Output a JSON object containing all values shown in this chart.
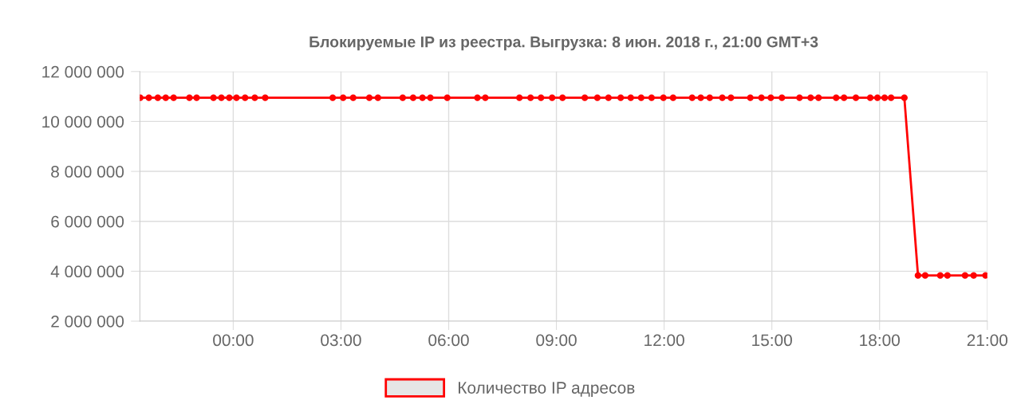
{
  "chart_data": {
    "type": "line",
    "title": "Блокируемые IP из реестра. Выгрузка: 8 июн. 2018 г., 21:00 GMT+3",
    "x": [
      -2.59,
      -2.35,
      -2.1,
      -1.88,
      -1.66,
      -1.22,
      -1.02,
      -0.55,
      -0.33,
      -0.11,
      0.09,
      0.33,
      0.6,
      0.89,
      2.77,
      3.06,
      3.34,
      3.79,
      4.03,
      4.72,
      5.01,
      5.27,
      5.49,
      5.96,
      6.8,
      7.02,
      7.97,
      8.28,
      8.57,
      8.88,
      9.17,
      9.79,
      10.14,
      10.45,
      10.79,
      11.07,
      11.36,
      11.65,
      11.98,
      12.25,
      12.78,
      13.02,
      13.27,
      13.62,
      13.86,
      14.4,
      14.71,
      14.97,
      15.28,
      15.77,
      16.08,
      16.3,
      16.79,
      17.01,
      17.34,
      17.74,
      17.94,
      18.14,
      18.32,
      18.69,
      19.07,
      19.27,
      19.69,
      19.89,
      20.38,
      20.62,
      20.95
    ],
    "series": [
      {
        "name": "Количество IP адресов",
        "color": "#ff0000",
        "values": [
          10950000,
          10950000,
          10950000,
          10950000,
          10950000,
          10950000,
          10950000,
          10950000,
          10950000,
          10950000,
          10950000,
          10950000,
          10950000,
          10950000,
          10950000,
          10950000,
          10950000,
          10950000,
          10950000,
          10950000,
          10950000,
          10950000,
          10950000,
          10950000,
          10950000,
          10950000,
          10950000,
          10950000,
          10950000,
          10950000,
          10950000,
          10950000,
          10950000,
          10950000,
          10950000,
          10950000,
          10950000,
          10950000,
          10950000,
          10950000,
          10950000,
          10950000,
          10950000,
          10950000,
          10950000,
          10950000,
          10950000,
          10950000,
          10950000,
          10950000,
          10950000,
          10950000,
          10950000,
          10950000,
          10950000,
          10950000,
          10950000,
          10950000,
          10950000,
          10950000,
          3830000,
          3830000,
          3830000,
          3830000,
          3830000,
          3830000,
          3830000
        ]
      }
    ],
    "xlim": [
      -2.6,
      21
    ],
    "xticks": [
      {
        "value": 0,
        "label": "00:00"
      },
      {
        "value": 3,
        "label": "03:00"
      },
      {
        "value": 6,
        "label": "06:00"
      },
      {
        "value": 9,
        "label": "09:00"
      },
      {
        "value": 12,
        "label": "12:00"
      },
      {
        "value": 15,
        "label": "15:00"
      },
      {
        "value": 18,
        "label": "18:00"
      },
      {
        "value": 21,
        "label": "21:00"
      }
    ],
    "ylim": [
      2000000,
      12000000
    ],
    "yticks": [
      {
        "value": 2000000,
        "label": "2 000 000"
      },
      {
        "value": 4000000,
        "label": "4 000 000"
      },
      {
        "value": 6000000,
        "label": "6 000 000"
      },
      {
        "value": 8000000,
        "label": "8 000 000"
      },
      {
        "value": 10000000,
        "label": "10 000 000"
      },
      {
        "value": 12000000,
        "label": "12 000 000"
      }
    ],
    "grid": true,
    "legend": "bottom",
    "marker": "circle",
    "line_style": "solid"
  }
}
